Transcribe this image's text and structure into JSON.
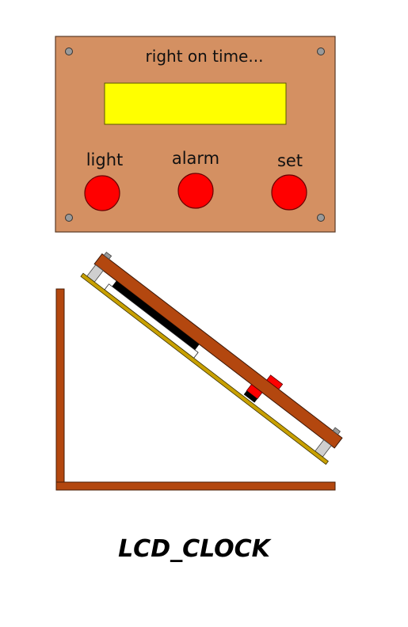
{
  "front_view": {
    "tagline": "right on time...",
    "buttons": [
      {
        "label": "light"
      },
      {
        "label": "alarm"
      },
      {
        "label": "set"
      }
    ]
  },
  "caption": "LCD_CLOCK",
  "colors": {
    "panel_wood": "#d49062",
    "lcd_screen": "#ffff00",
    "button_red": "#ff0000",
    "screw_grey": "#9a9a9a",
    "stand_brown": "#b3470f",
    "pcb_gold": "#c8a000",
    "lcd_black": "#000000"
  },
  "icons": [
    "screw-icon",
    "push-button-icon"
  ]
}
